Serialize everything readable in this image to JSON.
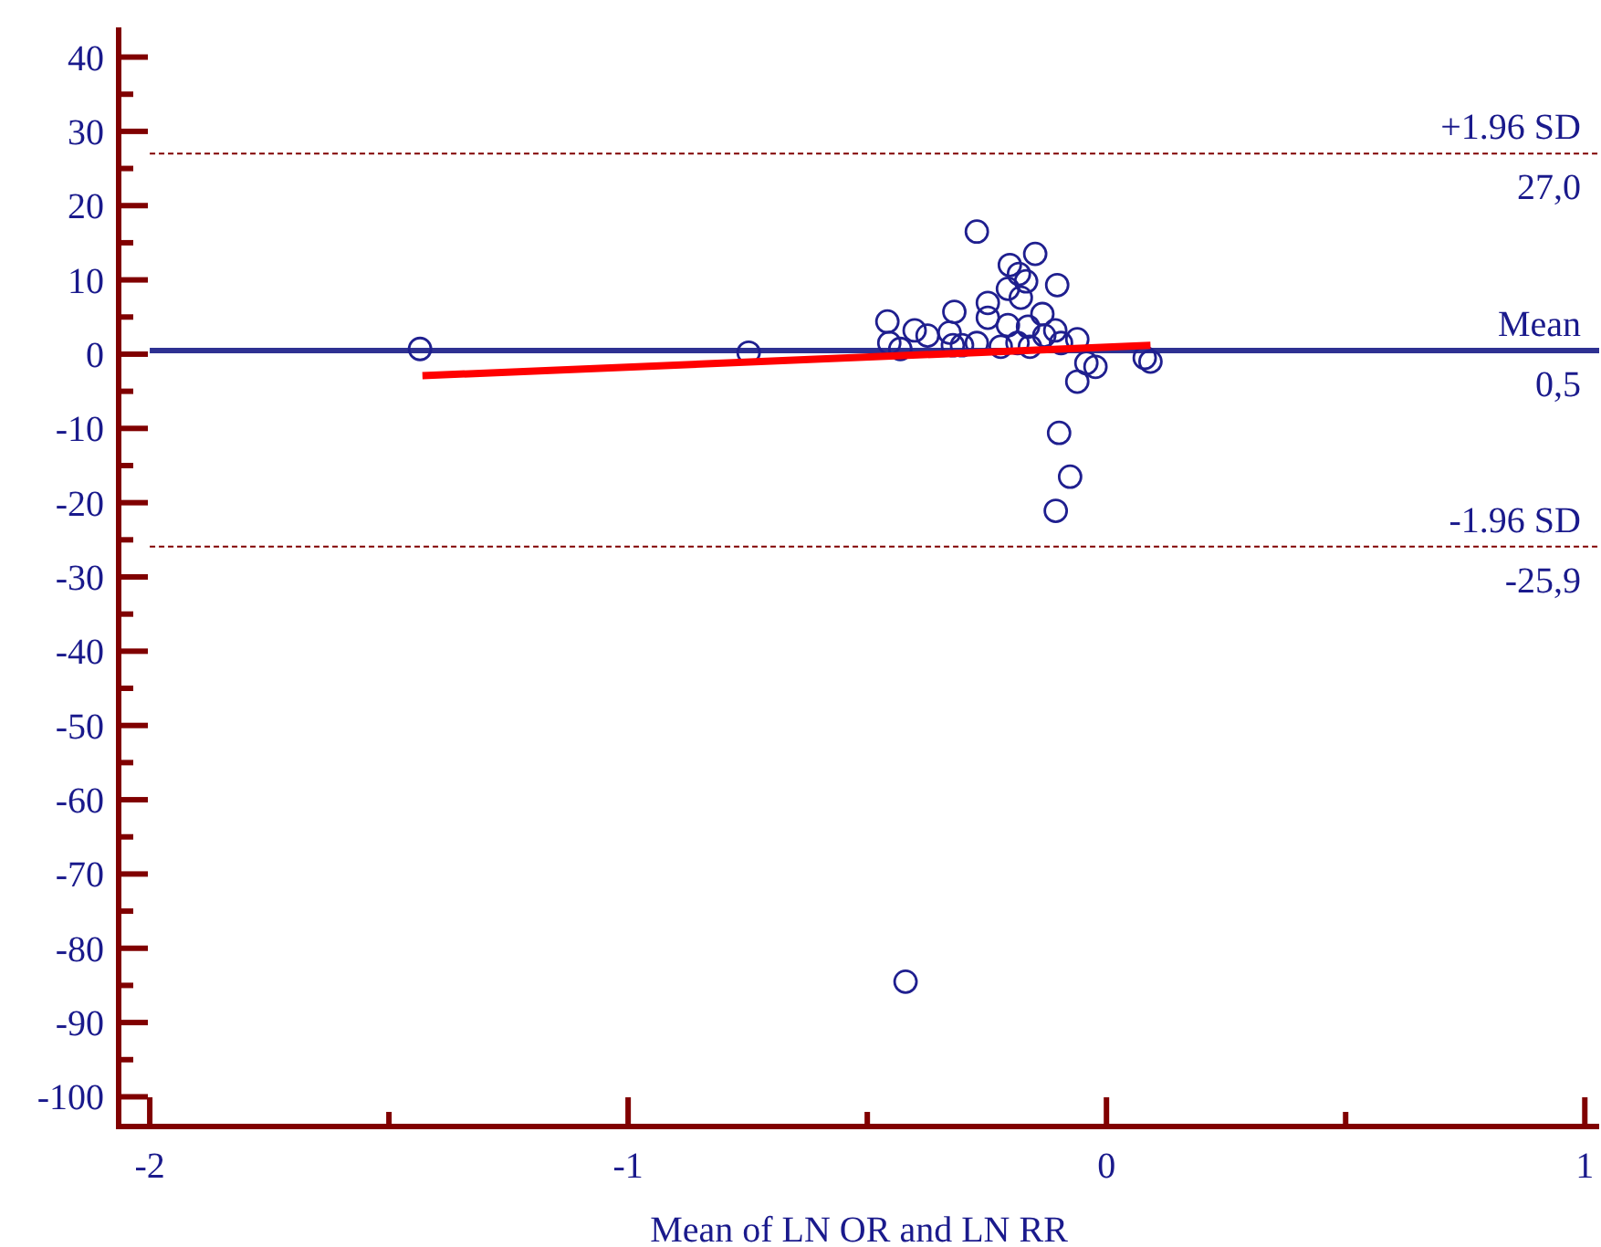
{
  "chart_data": {
    "type": "scatter",
    "xlabel": "Mean of LN OR and LN RR",
    "xlim": [
      -2.065,
      1.03
    ],
    "ylim": [
      -104,
      44
    ],
    "xticks": [
      -2,
      {
        "value": -1.5,
        "label": null
      },
      -1,
      {
        "value": -0.5,
        "label": null
      },
      0,
      {
        "value": 0.5,
        "label": null
      },
      1
    ],
    "yticks": [
      -100,
      {
        "value": -95,
        "label": null
      },
      -90,
      {
        "value": -85,
        "label": null
      },
      -80,
      {
        "value": -75,
        "label": null
      },
      -70,
      {
        "value": -65,
        "label": null
      },
      -60,
      {
        "value": -55,
        "label": null
      },
      -50,
      {
        "value": -45,
        "label": null
      },
      -40,
      {
        "value": -35,
        "label": null
      },
      -30,
      {
        "value": -25,
        "label": null
      },
      -20,
      {
        "value": -15,
        "label": null
      },
      -10,
      {
        "value": -5,
        "label": null
      },
      0,
      {
        "value": 5,
        "label": null
      },
      10,
      {
        "value": 15,
        "label": null
      },
      20,
      {
        "value": 25,
        "label": null
      },
      30,
      {
        "value": 35,
        "label": null
      },
      40
    ],
    "series": [
      {
        "marker": "circle",
        "color": "#1f1f8f",
        "x": [
          -1.435,
          -0.748,
          -0.42,
          -0.271,
          -0.149,
          -0.202,
          -0.183,
          -0.168,
          -0.206,
          -0.103,
          -0.179,
          -0.248,
          -0.318,
          -0.248,
          -0.134,
          -0.458,
          -0.206,
          -0.164,
          -0.401,
          -0.374,
          -0.328,
          -0.13,
          -0.107,
          -0.454,
          -0.431,
          -0.321,
          -0.302,
          -0.271,
          -0.221,
          -0.186,
          -0.16,
          -0.061,
          -0.095,
          -0.023,
          -0.042,
          -0.061,
          0.08,
          0.092,
          -0.099,
          -0.076,
          -0.106
        ],
        "values": [
          0.7,
          0.2,
          -84.5,
          16.5,
          13.5,
          12.0,
          10.8,
          9.8,
          8.8,
          9.3,
          7.6,
          6.9,
          5.7,
          4.9,
          5.4,
          4.4,
          3.9,
          3.7,
          3.2,
          2.5,
          2.9,
          2.5,
          3.2,
          1.5,
          0.7,
          1.2,
          1.2,
          1.5,
          1.0,
          1.5,
          1.0,
          2.0,
          1.5,
          -1.7,
          -1.2,
          -3.7,
          -0.5,
          -1.0,
          -10.6,
          -16.5,
          -21.1
        ]
      },
      {
        "type": "line",
        "marker": "none",
        "color": "#ff0000",
        "x": [
          -1.43,
          0.092
        ],
        "values": [
          -2.9,
          1.2
        ]
      }
    ],
    "ref_lines": [
      {
        "axis": "y",
        "value": 27.0,
        "label": "+1.96 SD",
        "color": "#800000",
        "line_style": "dashed"
      },
      {
        "axis": "y",
        "value": 0.5,
        "label": "Mean",
        "color": "#2e3192",
        "line_style": "solid"
      },
      {
        "axis": "y",
        "value": -25.9,
        "label": "-1.96 SD",
        "color": "#800000",
        "line_style": "dashed"
      }
    ],
    "annotations": [
      "27,0",
      "0,5",
      "-25,9"
    ]
  }
}
